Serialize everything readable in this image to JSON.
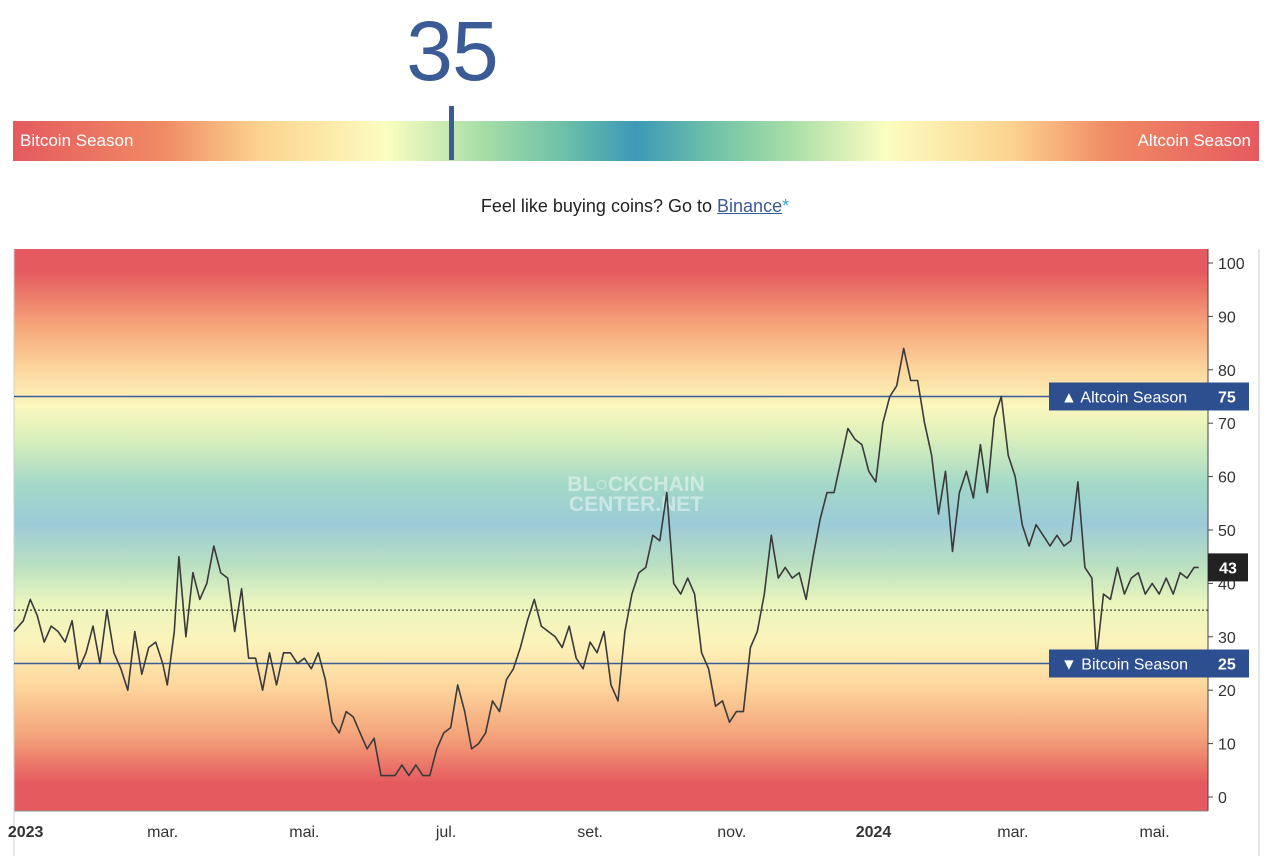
{
  "header": {
    "index_value": "35",
    "bar_left_label": "Bitcoin Season",
    "bar_right_label": "Altcoin Season",
    "marker_position": 35
  },
  "promo": {
    "text": "Feel like buying coins? Go to",
    "link_label": "Binance",
    "star": "*"
  },
  "colors": {
    "line": "#3a3a3a",
    "threshold_line": "#3b5b96",
    "label_bg": "#2e4f8f",
    "current_bg": "#222222",
    "red": "#e55a5f",
    "yellow": "#fbfdc0",
    "teal": "#8fcfc4"
  },
  "watermark": [
    "BL○CKCHAIN",
    "CENTER.NET"
  ],
  "chart_data": {
    "type": "line",
    "ylim": [
      0,
      100
    ],
    "y_ticks": [
      0,
      10,
      20,
      30,
      40,
      50,
      60,
      70,
      80,
      90,
      100
    ],
    "x_range": [
      "2022-12-27",
      "2024-05-24"
    ],
    "x_ticks": [
      {
        "date": "2023-01-01",
        "label": "2023"
      },
      {
        "date": "2023-03-01",
        "label": "mar."
      },
      {
        "date": "2023-05-01",
        "label": "mai."
      },
      {
        "date": "2023-07-01",
        "label": "jul."
      },
      {
        "date": "2023-09-01",
        "label": "set."
      },
      {
        "date": "2023-11-01",
        "label": "nov."
      },
      {
        "date": "2024-01-01",
        "label": "2024"
      },
      {
        "date": "2024-03-01",
        "label": "mar."
      },
      {
        "date": "2024-05-01",
        "label": "mai."
      }
    ],
    "thresholds": [
      {
        "value": 75,
        "label": "▲ Altcoin Season",
        "value_label": "75"
      },
      {
        "value": 25,
        "label": "▼ Bitcoin Season",
        "value_label": "25"
      }
    ],
    "current_level": 35,
    "last_value_label": "43",
    "series": [
      {
        "points": [
          [
            "2022-12-27",
            31
          ],
          [
            "2022-12-31",
            33
          ],
          [
            "2023-01-03",
            37
          ],
          [
            "2023-01-06",
            34
          ],
          [
            "2023-01-09",
            29
          ],
          [
            "2023-01-12",
            32
          ],
          [
            "2023-01-15",
            31
          ],
          [
            "2023-01-18",
            29
          ],
          [
            "2023-01-21",
            33
          ],
          [
            "2023-01-24",
            24
          ],
          [
            "2023-01-27",
            27
          ],
          [
            "2023-01-30",
            32
          ],
          [
            "2023-02-02",
            25
          ],
          [
            "2023-02-05",
            35
          ],
          [
            "2023-02-08",
            27
          ],
          [
            "2023-02-11",
            24
          ],
          [
            "2023-02-14",
            20
          ],
          [
            "2023-02-17",
            31
          ],
          [
            "2023-02-20",
            23
          ],
          [
            "2023-02-23",
            28
          ],
          [
            "2023-02-26",
            29
          ],
          [
            "2023-03-01",
            25
          ],
          [
            "2023-03-03",
            21
          ],
          [
            "2023-03-06",
            31
          ],
          [
            "2023-03-08",
            45
          ],
          [
            "2023-03-11",
            30
          ],
          [
            "2023-03-14",
            42
          ],
          [
            "2023-03-17",
            37
          ],
          [
            "2023-03-20",
            40
          ],
          [
            "2023-03-23",
            47
          ],
          [
            "2023-03-26",
            42
          ],
          [
            "2023-03-29",
            41
          ],
          [
            "2023-04-01",
            31
          ],
          [
            "2023-04-04",
            39
          ],
          [
            "2023-04-07",
            26
          ],
          [
            "2023-04-10",
            26
          ],
          [
            "2023-04-13",
            20
          ],
          [
            "2023-04-16",
            27
          ],
          [
            "2023-04-19",
            21
          ],
          [
            "2023-04-22",
            27
          ],
          [
            "2023-04-25",
            27
          ],
          [
            "2023-04-28",
            25
          ],
          [
            "2023-05-01",
            26
          ],
          [
            "2023-05-04",
            24
          ],
          [
            "2023-05-07",
            27
          ],
          [
            "2023-05-10",
            22
          ],
          [
            "2023-05-13",
            14
          ],
          [
            "2023-05-16",
            12
          ],
          [
            "2023-05-19",
            16
          ],
          [
            "2023-05-22",
            15
          ],
          [
            "2023-05-25",
            12
          ],
          [
            "2023-05-28",
            9
          ],
          [
            "2023-05-31",
            11
          ],
          [
            "2023-06-03",
            4
          ],
          [
            "2023-06-06",
            4
          ],
          [
            "2023-06-09",
            4
          ],
          [
            "2023-06-12",
            6
          ],
          [
            "2023-06-15",
            4
          ],
          [
            "2023-06-18",
            6
          ],
          [
            "2023-06-21",
            4
          ],
          [
            "2023-06-24",
            4
          ],
          [
            "2023-06-27",
            9
          ],
          [
            "2023-06-30",
            12
          ],
          [
            "2023-07-03",
            13
          ],
          [
            "2023-07-06",
            21
          ],
          [
            "2023-07-09",
            16
          ],
          [
            "2023-07-12",
            9
          ],
          [
            "2023-07-15",
            10
          ],
          [
            "2023-07-18",
            12
          ],
          [
            "2023-07-21",
            18
          ],
          [
            "2023-07-24",
            16
          ],
          [
            "2023-07-27",
            22
          ],
          [
            "2023-07-30",
            24
          ],
          [
            "2023-08-02",
            28
          ],
          [
            "2023-08-05",
            33
          ],
          [
            "2023-08-08",
            37
          ],
          [
            "2023-08-11",
            32
          ],
          [
            "2023-08-14",
            31
          ],
          [
            "2023-08-17",
            30
          ],
          [
            "2023-08-20",
            28
          ],
          [
            "2023-08-23",
            32
          ],
          [
            "2023-08-26",
            26
          ],
          [
            "2023-08-29",
            24
          ],
          [
            "2023-09-01",
            29
          ],
          [
            "2023-09-04",
            27
          ],
          [
            "2023-09-07",
            31
          ],
          [
            "2023-09-10",
            21
          ],
          [
            "2023-09-13",
            18
          ],
          [
            "2023-09-16",
            31
          ],
          [
            "2023-09-19",
            38
          ],
          [
            "2023-09-22",
            42
          ],
          [
            "2023-09-25",
            43
          ],
          [
            "2023-09-28",
            49
          ],
          [
            "2023-10-01",
            48
          ],
          [
            "2023-10-04",
            57
          ],
          [
            "2023-10-07",
            40
          ],
          [
            "2023-10-10",
            38
          ],
          [
            "2023-10-13",
            41
          ],
          [
            "2023-10-16",
            38
          ],
          [
            "2023-10-19",
            27
          ],
          [
            "2023-10-22",
            24
          ],
          [
            "2023-10-25",
            17
          ],
          [
            "2023-10-28",
            18
          ],
          [
            "2023-10-31",
            14
          ],
          [
            "2023-11-03",
            16
          ],
          [
            "2023-11-06",
            16
          ],
          [
            "2023-11-09",
            28
          ],
          [
            "2023-11-12",
            31
          ],
          [
            "2023-11-15",
            38
          ],
          [
            "2023-11-18",
            49
          ],
          [
            "2023-11-21",
            41
          ],
          [
            "2023-11-24",
            43
          ],
          [
            "2023-11-27",
            41
          ],
          [
            "2023-11-30",
            42
          ],
          [
            "2023-12-03",
            37
          ],
          [
            "2023-12-06",
            45
          ],
          [
            "2023-12-09",
            52
          ],
          [
            "2023-12-12",
            57
          ],
          [
            "2023-12-15",
            57
          ],
          [
            "2023-12-18",
            63
          ],
          [
            "2023-12-21",
            69
          ],
          [
            "2023-12-24",
            67
          ],
          [
            "2023-12-27",
            66
          ],
          [
            "2023-12-30",
            61
          ],
          [
            "2024-01-02",
            59
          ],
          [
            "2024-01-05",
            70
          ],
          [
            "2024-01-08",
            75
          ],
          [
            "2024-01-11",
            77
          ],
          [
            "2024-01-14",
            84
          ],
          [
            "2024-01-17",
            78
          ],
          [
            "2024-01-20",
            78
          ],
          [
            "2024-01-23",
            70
          ],
          [
            "2024-01-26",
            64
          ],
          [
            "2024-01-29",
            53
          ],
          [
            "2024-02-01",
            61
          ],
          [
            "2024-02-04",
            46
          ],
          [
            "2024-02-07",
            57
          ],
          [
            "2024-02-10",
            61
          ],
          [
            "2024-02-13",
            56
          ],
          [
            "2024-02-16",
            66
          ],
          [
            "2024-02-19",
            57
          ],
          [
            "2024-02-22",
            71
          ],
          [
            "2024-02-25",
            75
          ],
          [
            "2024-02-28",
            64
          ],
          [
            "2024-03-02",
            60
          ],
          [
            "2024-03-05",
            51
          ],
          [
            "2024-03-08",
            47
          ],
          [
            "2024-03-11",
            51
          ],
          [
            "2024-03-14",
            49
          ],
          [
            "2024-03-17",
            47
          ],
          [
            "2024-03-20",
            49
          ],
          [
            "2024-03-23",
            47
          ],
          [
            "2024-03-26",
            48
          ],
          [
            "2024-03-29",
            59
          ],
          [
            "2024-04-01",
            43
          ],
          [
            "2024-04-04",
            41
          ],
          [
            "2024-04-06",
            26
          ],
          [
            "2024-04-09",
            38
          ],
          [
            "2024-04-12",
            37
          ],
          [
            "2024-04-15",
            43
          ],
          [
            "2024-04-18",
            38
          ],
          [
            "2024-04-21",
            41
          ],
          [
            "2024-04-24",
            42
          ],
          [
            "2024-04-27",
            38
          ],
          [
            "2024-04-30",
            40
          ],
          [
            "2024-05-03",
            38
          ],
          [
            "2024-05-06",
            41
          ],
          [
            "2024-05-09",
            38
          ],
          [
            "2024-05-12",
            42
          ],
          [
            "2024-05-15",
            41
          ],
          [
            "2024-05-18",
            43
          ],
          [
            "2024-05-20",
            43
          ]
        ]
      }
    ]
  }
}
